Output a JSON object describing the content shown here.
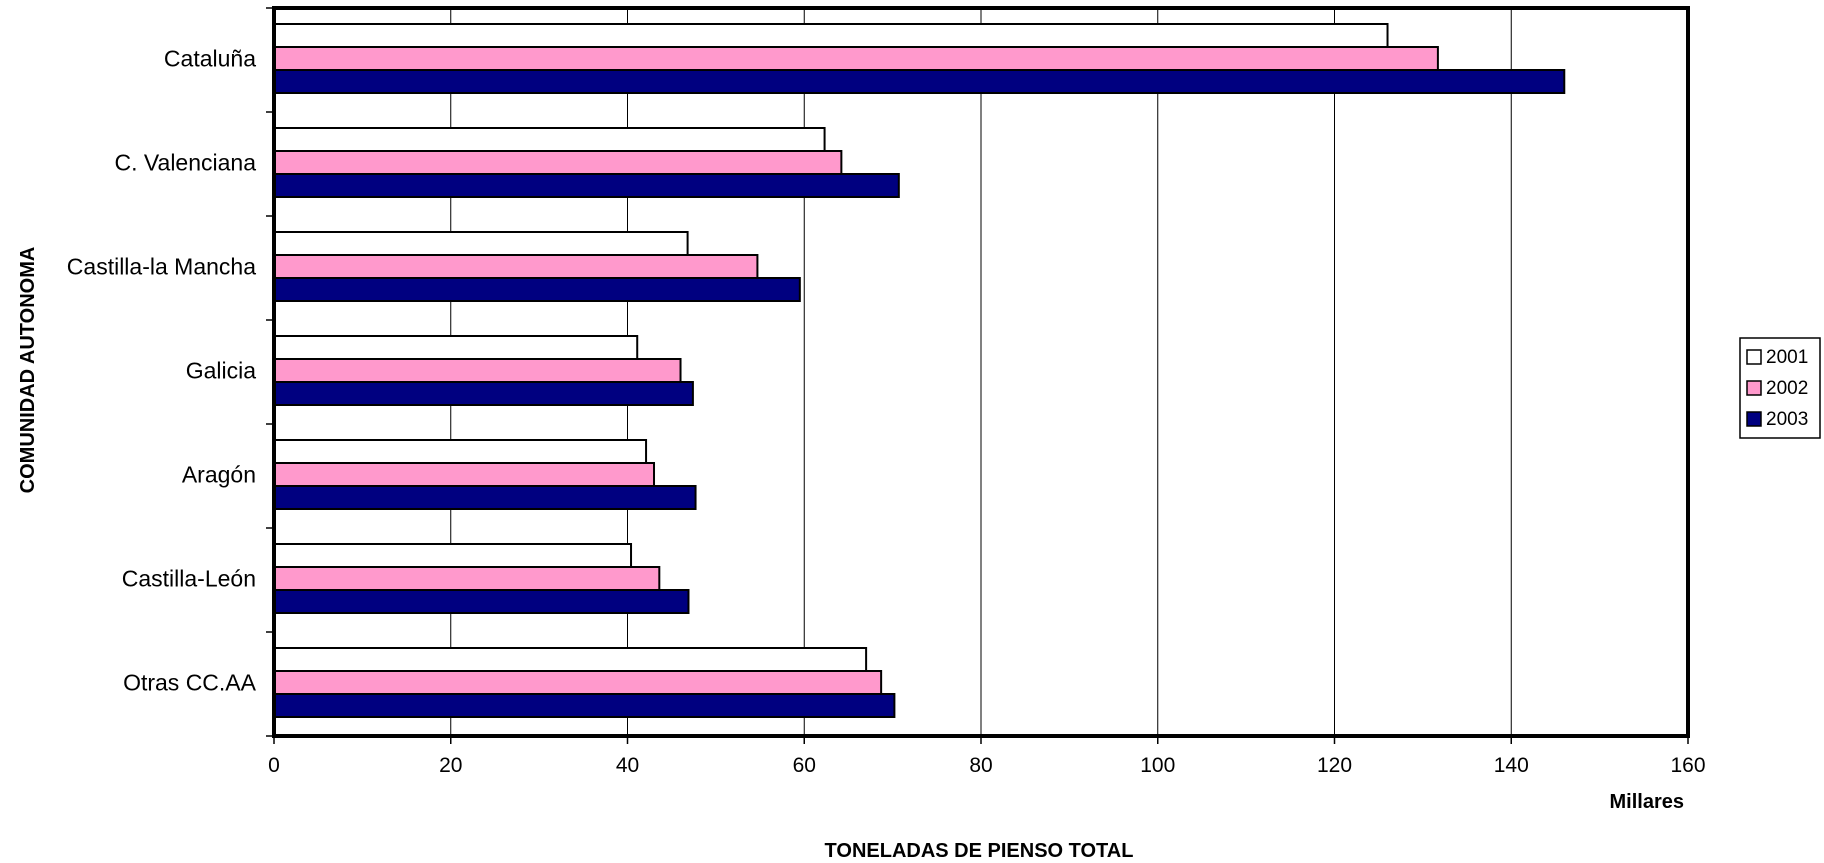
{
  "chart_data": {
    "type": "bar",
    "orientation": "horizontal",
    "categories": [
      "Cataluña",
      "C. Valenciana",
      "Castilla-la Mancha",
      "Galicia",
      "Aragón",
      "Castilla-León",
      "Otras CC.AA"
    ],
    "series": [
      {
        "name": "2001",
        "color": "#ffffff",
        "values": [
          126,
          62.3,
          46.8,
          41.1,
          42.1,
          40.4,
          67
        ]
      },
      {
        "name": "2002",
        "color": "#ff99cc",
        "values": [
          131.7,
          64.2,
          54.7,
          46,
          43,
          43.6,
          68.7
        ]
      },
      {
        "name": "2003",
        "color": "#000080",
        "values": [
          146,
          70.7,
          59.5,
          47.4,
          47.7,
          46.9,
          70.2
        ]
      }
    ],
    "xlabel": "TONELADAS DE PIENSO TOTAL",
    "x_unit_label": "Millares",
    "ylabel": "COMUNIDAD AUTONOMA",
    "xlim": [
      0,
      160
    ],
    "x_ticks": [
      "0",
      "20",
      "40",
      "60",
      "80",
      "100",
      "120",
      "140",
      "160"
    ],
    "grid": "vertical",
    "legend_position": "right"
  }
}
